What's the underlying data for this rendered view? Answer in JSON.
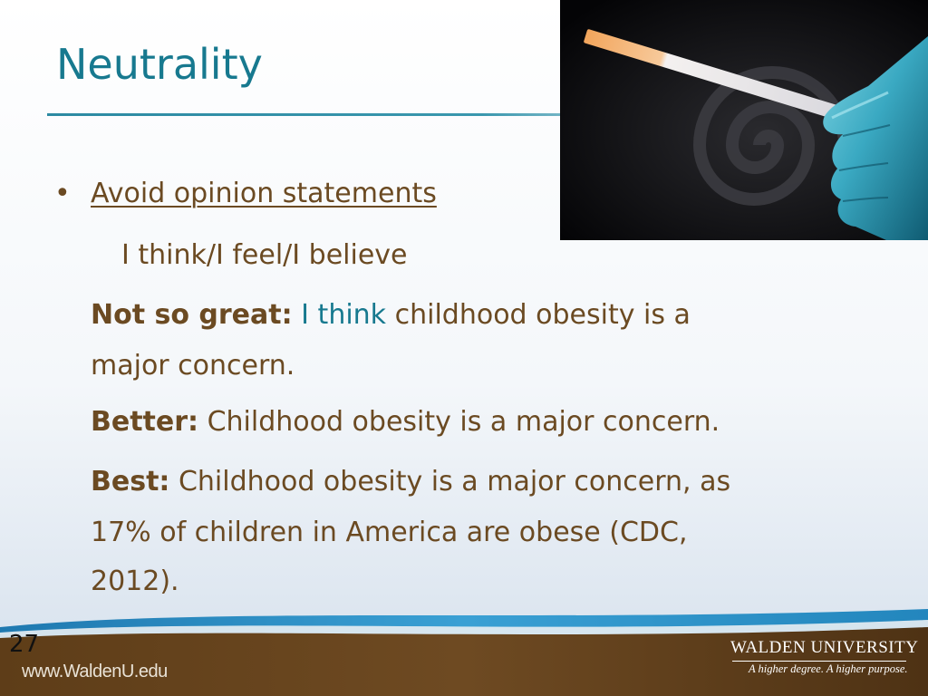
{
  "slide": {
    "title": "Neutrality",
    "bullet_char": "•",
    "heading_link": "Avoid opinion statements",
    "examples_line": "I think/I feel/I believe",
    "not_so_great": {
      "label": "Not so great:",
      "highlight": "I think",
      "text_line1": " childhood obesity is a",
      "text_line2": "major concern."
    },
    "better": {
      "label": "Better:",
      "text": " Childhood obesity is a major concern."
    },
    "best": {
      "label": "Best:",
      "text_line1": " Childhood obesity is a major concern, as",
      "text_line2": "17% of children in America are obese (CDC,",
      "text_line3": "2012)."
    },
    "page_number": "27"
  },
  "footer": {
    "url": "www.WaldenU.edu",
    "logo_name": "WALDEN UNIVERSITY",
    "logo_tagline": "A higher degree. A higher purpose."
  },
  "colors": {
    "title": "#17798f",
    "body_text": "#6b4a22",
    "footer_brown": "#6e4a22",
    "footer_blue": "#2e8fc0"
  },
  "icons": {
    "photo": "test-strip-gloved-hand-photo"
  }
}
